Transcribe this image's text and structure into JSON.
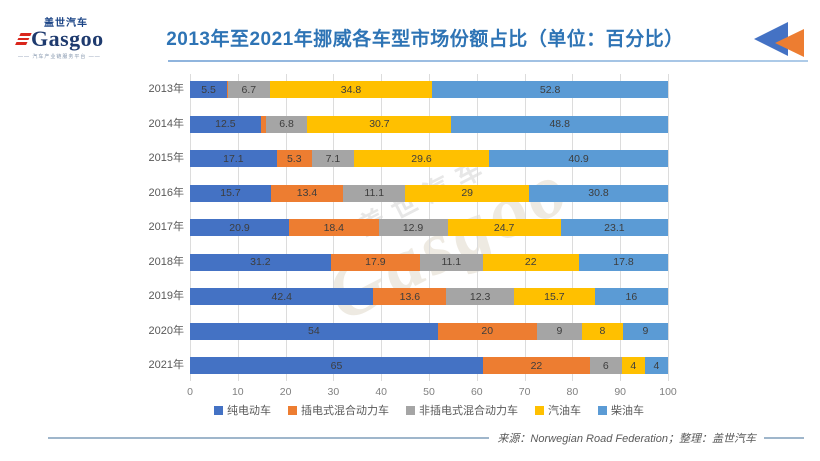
{
  "header": {
    "logo": {
      "cn": "盖世汽车",
      "en": "Gasgoo",
      "tagline": "—— 汽车产业链服务平台 ——"
    },
    "title": "2013年至2021年挪威各车型市场份额占比（单位：百分比）"
  },
  "watermark": {
    "cn": "盖世汽车",
    "en": "Gasgoo"
  },
  "chart_data": {
    "type": "bar",
    "orientation": "horizontal",
    "stacked": true,
    "title": "2013年至2021年挪威各车型市场份额占比（单位：百分比）",
    "categories": [
      "2013年",
      "2014年",
      "2015年",
      "2016年",
      "2017年",
      "2018年",
      "2019年",
      "2020年",
      "2021年"
    ],
    "series": [
      {
        "name": "纯电动车",
        "color": "#4472C4",
        "values": [
          5.5,
          12.5,
          17.1,
          15.7,
          20.9,
          31.2,
          42.4,
          54,
          65
        ],
        "labels": [
          "5.5",
          "12.5",
          "17.1",
          "15.7",
          "20.9",
          "31.2",
          "42.4",
          "54",
          "65"
        ]
      },
      {
        "name": "插电式混合动力车",
        "color": "#ED7D31",
        "values": [
          0.2,
          1.2,
          5.3,
          13.4,
          18.4,
          17.9,
          13.6,
          20,
          22
        ],
        "labels": [
          "",
          "",
          "5.3",
          "13.4",
          "18.4",
          "17.9",
          "13.6",
          "20",
          "22"
        ]
      },
      {
        "name": "非插电式混合动力车",
        "color": "#A5A5A5",
        "values": [
          6.7,
          6.8,
          7.1,
          11.1,
          12.9,
          11.1,
          12.3,
          9,
          6
        ],
        "labels": [
          "6.7",
          "6.8",
          "7.1",
          "11.1",
          "12.9",
          "11.1",
          "12.3",
          "9",
          "6"
        ]
      },
      {
        "name": "汽油车",
        "color": "#FFC000",
        "values": [
          34.8,
          30.7,
          29.6,
          29,
          24.7,
          22,
          15.7,
          8,
          4
        ],
        "labels": [
          "34.8",
          "30.7",
          "29.6",
          "29",
          "24.7",
          "22",
          "15.7",
          "8",
          "4"
        ]
      },
      {
        "name": "柴油车",
        "color": "#5B9BD5",
        "values": [
          52.8,
          48.8,
          40.9,
          30.8,
          23.1,
          17.8,
          16,
          9,
          4
        ],
        "labels": [
          "52.8",
          "48.8",
          "40.9",
          "30.8",
          "23.1",
          "17.8",
          "16",
          "9",
          "4"
        ]
      }
    ],
    "x_ticks": [
      0,
      10,
      20,
      30,
      40,
      50,
      60,
      70,
      80,
      90,
      100
    ],
    "xlim": [
      0,
      100
    ],
    "grid": true,
    "legend_position": "bottom"
  },
  "footer": {
    "source": "来源：Norwegian Road Federation；整理：盖世汽车"
  }
}
